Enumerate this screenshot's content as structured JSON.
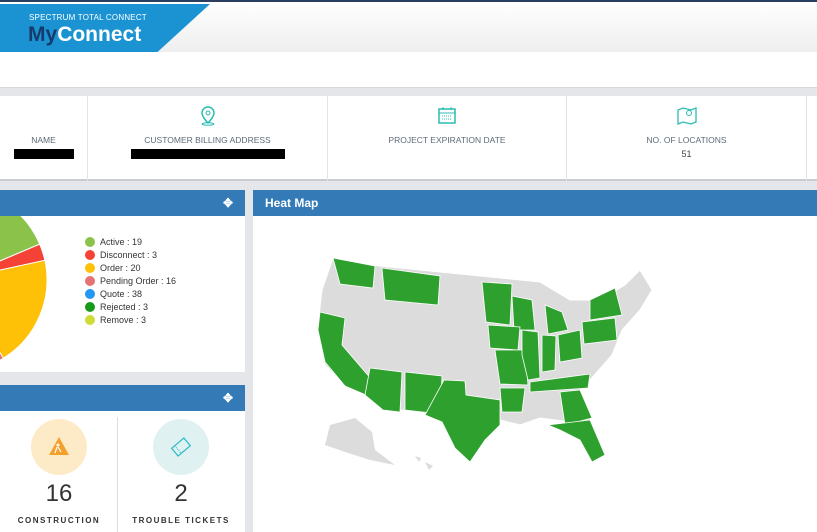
{
  "header": {
    "brand_sub": "SPECTRUM TOTAL CONNECT",
    "brand_my": "My",
    "brand_connect": "Connect"
  },
  "info": [
    {
      "label": "NAME",
      "value_redacted": true
    },
    {
      "label": "CUSTOMER BILLING ADDRESS",
      "value_redacted": true,
      "icon": "map-pin-icon"
    },
    {
      "label": "PROJECT EXPIRATION DATE",
      "value": "",
      "icon": "calendar-icon"
    },
    {
      "label": "NO. OF LOCATIONS",
      "value": "51",
      "icon": "map-icon"
    }
  ],
  "status_panel": {
    "legend": [
      {
        "label": "Active : 19",
        "name": "Active",
        "value": 19,
        "color": "#8bc34a"
      },
      {
        "label": "Disconnect : 3",
        "name": "Disconnect",
        "value": 3,
        "color": "#f44336"
      },
      {
        "label": "Order : 20",
        "name": "Order",
        "value": 20,
        "color": "#ffc107"
      },
      {
        "label": "Pending Order : 16",
        "name": "Pending Order",
        "value": 16,
        "color": "#e57373"
      },
      {
        "label": "Quote : 38",
        "name": "Quote",
        "value": 38,
        "color": "#2196f3"
      },
      {
        "label": "Rejected : 3",
        "name": "Rejected",
        "value": 3,
        "color": "#1a9a1a"
      },
      {
        "label": "Remove : 3",
        "name": "Remove",
        "value": 3,
        "color": "#cddc39"
      }
    ]
  },
  "stats": [
    {
      "value": "16",
      "label": "CONSTRUCTION",
      "icon": "construction-icon",
      "bg": "#fdebc8"
    },
    {
      "value": "2",
      "label": "TROUBLE TICKETS",
      "icon": "ticket-icon",
      "bg": "#dff1f1"
    }
  ],
  "heatmap": {
    "title": "Heat Map",
    "active_color": "#2ea02e",
    "inactive_color": "#dcdcdc"
  }
}
